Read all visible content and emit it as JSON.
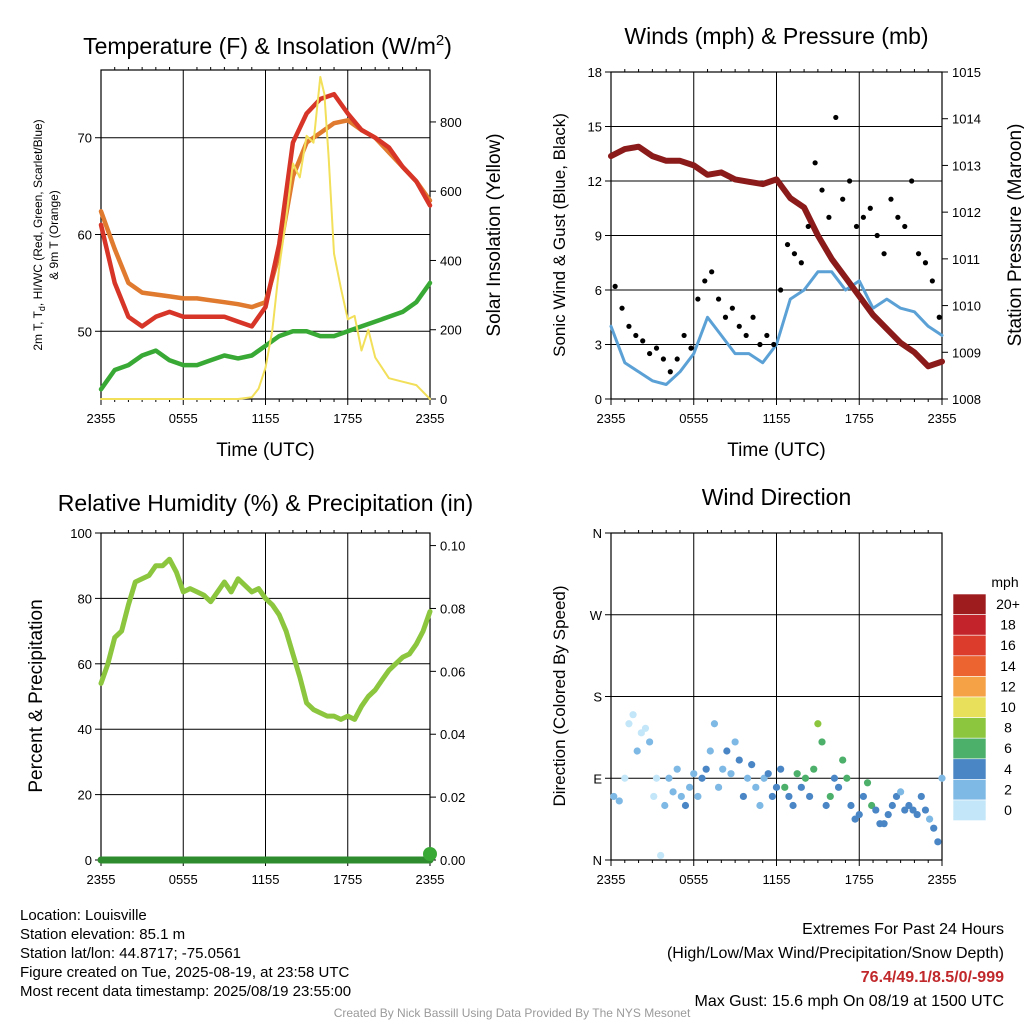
{
  "chart_data": [
    {
      "id": "temperature",
      "type": "line",
      "title_main": "Temperature (F) & Insolation (W/m",
      "title_sup": "2",
      "title_end": ")",
      "xlabel": "Time (UTC)",
      "ylabel_left_line1": "2m T, T",
      "ylabel_left_sub": "d",
      "ylabel_left_rest": ", HI/WC (Red, Green, Scarlet/Blue)",
      "ylabel_left_line2": "& 9m T (Orange)",
      "ylabel_right": "Solar Insolation (Yellow)",
      "xticks": [
        "2355",
        "0555",
        "1155",
        "1755",
        "2355"
      ],
      "x_hours": [
        0,
        6,
        12,
        18,
        24
      ],
      "xlim": [
        0,
        24
      ],
      "ylim": [
        43,
        77
      ],
      "yticks": [
        50,
        60,
        70
      ],
      "ylim_right": [
        0,
        950
      ],
      "yticks_right": [
        0,
        200,
        400,
        600,
        800
      ],
      "series": [
        {
          "color": "#e07a2e",
          "axis": "left",
          "x": [
            0,
            1,
            2,
            3,
            4,
            5,
            6,
            7,
            8,
            9,
            10,
            11,
            12,
            13,
            14,
            15,
            16,
            17,
            18,
            19,
            20,
            21,
            22,
            23,
            24
          ],
          "y": [
            62.4,
            58.5,
            55,
            54,
            53.8,
            53.6,
            53.4,
            53.4,
            53.2,
            53,
            52.8,
            52.5,
            53,
            58,
            66,
            69.5,
            70.5,
            71.5,
            71.8,
            70.8,
            70,
            68.5,
            67,
            65.5,
            63.5
          ]
        },
        {
          "color": "#d63527",
          "axis": "left",
          "x": [
            0,
            1,
            2,
            3,
            4,
            5,
            6,
            7,
            8,
            9,
            10,
            11,
            12,
            13,
            14,
            15,
            16,
            17,
            18,
            19,
            20,
            21,
            22,
            23,
            24
          ],
          "y": [
            61,
            55,
            51.5,
            50.5,
            51.5,
            52,
            51.5,
            51.5,
            51.5,
            51.5,
            51,
            50.5,
            52.5,
            59,
            69.5,
            72.5,
            74,
            74.5,
            72.5,
            70.8,
            70,
            69,
            67,
            65.5,
            63
          ]
        },
        {
          "color": "#39a935",
          "axis": "left",
          "x": [
            0,
            1,
            2,
            3,
            4,
            5,
            6,
            7,
            8,
            9,
            10,
            11,
            12,
            13,
            14,
            15,
            16,
            17,
            18,
            19,
            20,
            21,
            22,
            23,
            24
          ],
          "y": [
            44,
            46,
            46.5,
            47.5,
            48,
            47,
            46.5,
            46.5,
            47,
            47.5,
            47.2,
            47.5,
            48.5,
            49.5,
            50,
            50,
            49.5,
            49.5,
            50,
            50.5,
            51,
            51.5,
            52,
            53,
            55
          ]
        },
        {
          "color": "#f2df5a",
          "axis": "right",
          "x": [
            0,
            10,
            11,
            11.5,
            12,
            12.5,
            13,
            13.5,
            14,
            14.5,
            15,
            15.5,
            16,
            16.3,
            16.6,
            17,
            17.5,
            18,
            18.5,
            19,
            19.5,
            20,
            21,
            22,
            23,
            24
          ],
          "y": [
            0,
            0,
            5,
            30,
            90,
            200,
            380,
            520,
            680,
            640,
            760,
            740,
            930,
            880,
            700,
            420,
            320,
            230,
            240,
            140,
            200,
            120,
            60,
            50,
            40,
            0
          ]
        }
      ]
    },
    {
      "id": "winds",
      "type": "line",
      "title": "Winds (mph) & Pressure (mb)",
      "xlabel": "Time (UTC)",
      "ylabel_left": "Sonic Wind & Gust (Blue, Black)",
      "ylabel_right": "Station Pressure (Maroon)",
      "xticks": [
        "2355",
        "0555",
        "1155",
        "1755",
        "2355"
      ],
      "x_hours": [
        0,
        6,
        12,
        18,
        24
      ],
      "xlim": [
        0,
        24
      ],
      "ylim": [
        0,
        18
      ],
      "yticks": [
        0,
        3,
        6,
        9,
        12,
        15,
        18
      ],
      "ylim_right": [
        1008,
        1015
      ],
      "yticks_right": [
        1008,
        1009,
        1010,
        1011,
        1012,
        1013,
        1014,
        1015
      ],
      "series": [
        {
          "color": "#5ba1d6",
          "axis": "left",
          "name_role": "wind",
          "x": [
            0,
            1,
            2,
            3,
            4,
            5,
            6,
            7,
            8,
            9,
            10,
            11,
            12,
            13,
            14,
            15,
            16,
            17,
            18,
            19,
            20,
            21,
            22,
            23,
            24
          ],
          "y": [
            4,
            2,
            1.5,
            1,
            0.8,
            1.5,
            2.5,
            4.5,
            3.5,
            2.5,
            2.5,
            2,
            3,
            5.5,
            6,
            7,
            7,
            6,
            6.5,
            5,
            5.5,
            5,
            4.8,
            4,
            3.5
          ]
        },
        {
          "color": "#8b1a1a",
          "axis": "right",
          "name_role": "pressure",
          "x": [
            0,
            1,
            2,
            3,
            4,
            5,
            6,
            7,
            8,
            9,
            10,
            11,
            12,
            13,
            14,
            15,
            16,
            17,
            18,
            19,
            20,
            21,
            22,
            23,
            24
          ],
          "y": [
            1013.2,
            1013.35,
            1013.4,
            1013.2,
            1013.1,
            1013.1,
            1013.0,
            1012.8,
            1012.85,
            1012.7,
            1012.65,
            1012.6,
            1012.7,
            1012.3,
            1012.1,
            1011.5,
            1011.0,
            1010.6,
            1010.2,
            1009.8,
            1009.5,
            1009.2,
            1009.0,
            1008.7,
            1008.8
          ]
        }
      ],
      "gust_points": {
        "color": "#000000",
        "x": [
          0.3,
          0.8,
          1.3,
          1.8,
          2.3,
          2.8,
          3.3,
          3.8,
          4.3,
          4.8,
          5.3,
          5.8,
          6.3,
          6.8,
          7.3,
          7.8,
          8.3,
          8.8,
          9.3,
          9.8,
          10.3,
          10.8,
          11.3,
          11.8,
          12.3,
          12.8,
          13.3,
          13.8,
          14.3,
          14.8,
          15.3,
          15.8,
          16.3,
          16.8,
          17.3,
          17.8,
          18.3,
          18.8,
          19.3,
          19.8,
          20.3,
          20.8,
          21.3,
          21.8,
          22.3,
          22.8,
          23.3,
          23.8
        ],
        "y": [
          6.2,
          5,
          4,
          3.5,
          3.2,
          2.5,
          2.8,
          2.2,
          1.5,
          2.2,
          3.5,
          2.8,
          5.5,
          6.5,
          7,
          5.5,
          4.5,
          5,
          4,
          3.5,
          4.5,
          3,
          3.5,
          3,
          6,
          8.5,
          8,
          7.5,
          9.5,
          13,
          11.5,
          10,
          15.5,
          11,
          12,
          9.5,
          10,
          10.5,
          9,
          8,
          11,
          10,
          9.5,
          12,
          8,
          7.5,
          6.5,
          4.5
        ]
      }
    },
    {
      "id": "humidity",
      "type": "line",
      "title": "Relative Humidity (%) & Precipitation (in)",
      "ylabel_left": "Percent & Precipitation",
      "xticks": [
        "2355",
        "0555",
        "1155",
        "1755",
        "2355"
      ],
      "x_hours": [
        0,
        6,
        12,
        18,
        24
      ],
      "xlim": [
        0,
        24
      ],
      "ylim": [
        0,
        100
      ],
      "yticks": [
        0,
        20,
        40,
        60,
        80,
        100
      ],
      "ylim_right": [
        0,
        0.104
      ],
      "yticks_right": [
        "0.00",
        "0.02",
        "0.04",
        "0.06",
        "0.08",
        "0.10"
      ],
      "series": [
        {
          "color": "#8cc63f",
          "axis": "left",
          "x": [
            0,
            0.5,
            1,
            1.5,
            2,
            2.5,
            3,
            3.5,
            4,
            4.5,
            5,
            5.5,
            6,
            6.5,
            7,
            7.5,
            8,
            8.5,
            9,
            9.5,
            10,
            10.5,
            11,
            11.5,
            12,
            12.5,
            13,
            13.5,
            14,
            14.5,
            15,
            15.5,
            16,
            16.5,
            17,
            17.5,
            18,
            18.5,
            19,
            19.5,
            20,
            20.5,
            21,
            21.5,
            22,
            22.5,
            23,
            23.5,
            24
          ],
          "y": [
            54,
            60,
            68,
            70,
            78,
            85,
            86,
            87,
            90,
            90,
            92,
            88,
            82,
            83,
            82,
            81,
            79,
            82,
            85,
            82,
            86,
            84,
            82,
            83,
            80,
            78,
            75,
            70,
            63,
            56,
            48,
            46,
            45,
            44,
            44,
            43,
            44,
            43,
            47,
            50,
            52,
            55,
            58,
            60,
            62,
            63,
            66,
            70,
            76
          ]
        },
        {
          "color": "#2e8b2e",
          "axis": "left",
          "x": [
            0,
            24
          ],
          "y": [
            0,
            0
          ]
        }
      ]
    },
    {
      "id": "direction",
      "type": "scatter",
      "title": "Wind Direction",
      "ylabel_left": "Direction (Colored By Speed)",
      "xticks": [
        "2355",
        "0555",
        "1155",
        "1755",
        "2355"
      ],
      "x_hours": [
        0,
        6,
        12,
        18,
        24
      ],
      "xlim": [
        0,
        24
      ],
      "yticks_deg": [
        0,
        90,
        180,
        270,
        360
      ],
      "yticklabels": [
        "N",
        "E",
        "S",
        "W",
        "N"
      ],
      "ylim": [
        0,
        360
      ],
      "colorbar_title": "mph",
      "colorbar_labels": [
        "20+",
        "18",
        "16",
        "14",
        "12",
        "10",
        "8",
        "6",
        "4",
        "2",
        "0"
      ],
      "colorbar_colors": [
        "#9e1b1e",
        "#c3232b",
        "#db3c2c",
        "#ec6531",
        "#f5a145",
        "#e8e05a",
        "#8cc63f",
        "#4caf6a",
        "#4a86c5",
        "#7eb8e4",
        "#c3e6f8"
      ],
      "points": {
        "x": [
          0.2,
          0.6,
          1.0,
          1.3,
          1.6,
          1.9,
          2.2,
          2.5,
          2.8,
          3.1,
          3.3,
          3.6,
          3.9,
          4.2,
          4.5,
          4.8,
          5.1,
          5.4,
          5.7,
          6.0,
          6.3,
          6.6,
          6.9,
          7.2,
          7.5,
          7.8,
          8.1,
          8.4,
          8.7,
          9.0,
          9.3,
          9.6,
          9.9,
          10.2,
          10.5,
          10.8,
          11.1,
          11.4,
          11.7,
          12.0,
          12.3,
          12.6,
          12.9,
          13.2,
          13.5,
          13.8,
          14.1,
          14.4,
          14.7,
          15.0,
          15.3,
          15.6,
          15.9,
          16.2,
          16.5,
          16.8,
          17.1,
          17.4,
          17.7,
          18.0,
          18.3,
          18.6,
          18.9,
          19.2,
          19.5,
          19.8,
          20.1,
          20.4,
          20.7,
          21.0,
          21.3,
          21.6,
          21.9,
          22.2,
          22.5,
          22.8,
          23.1,
          23.4,
          23.7,
          24.0
        ],
        "y": [
          70,
          65,
          90,
          150,
          160,
          120,
          140,
          145,
          130,
          70,
          90,
          5,
          60,
          90,
          75,
          100,
          70,
          60,
          80,
          95,
          70,
          90,
          100,
          120,
          150,
          80,
          100,
          120,
          95,
          130,
          110,
          70,
          90,
          105,
          80,
          60,
          90,
          95,
          70,
          80,
          100,
          80,
          70,
          60,
          95,
          80,
          90,
          70,
          100,
          150,
          130,
          60,
          70,
          90,
          80,
          110,
          90,
          60,
          45,
          50,
          70,
          85,
          60,
          55,
          40,
          40,
          50,
          60,
          70,
          75,
          55,
          60,
          55,
          50,
          70,
          55,
          45,
          35,
          20,
          90
        ],
        "speed": [
          3,
          3,
          1,
          1,
          1,
          2,
          1,
          1,
          2,
          1,
          1,
          1,
          2,
          3,
          2,
          3,
          3,
          4,
          3,
          2,
          3,
          4,
          4,
          3,
          2,
          3,
          3,
          4,
          3,
          3,
          4,
          4,
          3,
          4,
          3,
          3,
          3,
          4,
          4,
          5,
          4,
          6,
          4,
          4,
          6,
          5,
          7,
          4,
          6,
          8,
          7,
          5,
          6,
          5,
          4,
          7,
          6,
          5,
          4,
          5,
          5,
          6,
          6,
          4,
          5,
          4,
          5,
          5,
          4,
          3,
          5,
          4,
          4,
          4,
          5,
          4,
          3,
          4,
          4,
          3
        ]
      }
    }
  ],
  "info_left": [
    "Location: Louisville",
    "Station elevation: 85.1 m",
    "Station lat/lon: 44.8717; -75.0561",
    "Figure created on Tue, 2025-08-19, at 23:58 UTC",
    "Most recent data timestamp: 2025/08/19 23:55:00"
  ],
  "info_right": {
    "line1": "Extremes For Past 24 Hours",
    "line2": "(High/Low/Max Wind/Precipitation/Snow Depth)",
    "values": "76.4/49.1/8.5/0/-999",
    "max_gust": "Max Gust: 15.6 mph On 08/19 at 1500 UTC"
  },
  "credit": "Created By Nick Bassill Using Data Provided By The NYS Mesonet"
}
